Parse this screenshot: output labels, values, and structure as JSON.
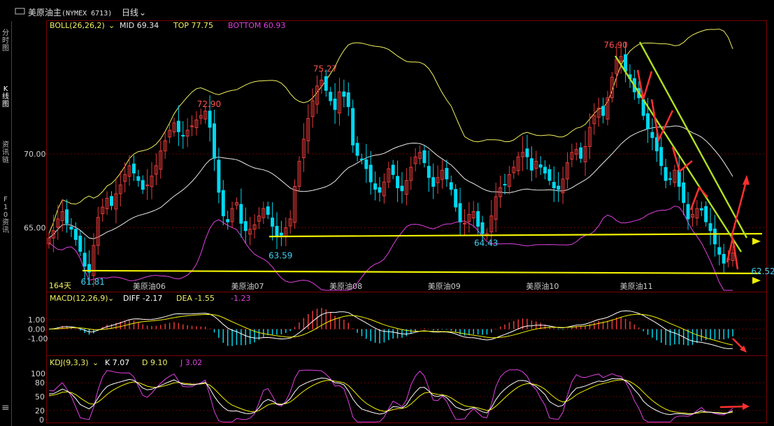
{
  "header": {
    "icon": "link-icon",
    "title": "美原油主",
    "code": "(NYMEX 6713)",
    "period": "日线",
    "period_caret": "⌄"
  },
  "side_tabs": [
    "分时图",
    "K线图",
    "资讯链",
    "F10资讯"
  ],
  "menu_icon": "≡",
  "colors": {
    "up": "#e83a3a",
    "down": "#00d8f0",
    "mid": "#e8e8e8",
    "top": "#f0f060",
    "bottom": "#e040e0",
    "channel": "#b0e020",
    "support": "#f0f000",
    "arrow": "#ff3030",
    "k": "#ffffff",
    "d": "#f0f000",
    "j": "#e040e0",
    "grid": "#6a0000",
    "axis": "#d0d0d0"
  },
  "boll": {
    "label": "BOLL(26,26,2)",
    "caret": "⌄",
    "mid": "MID 69.34",
    "top": "TOP 77.75",
    "bottom": "BOTTOM 60.93"
  },
  "macd": {
    "label": "MACD(12,26,9)",
    "caret": "⌄",
    "diff": "DIFF -2.17",
    "dea": "DEA -1.55",
    "macd": "-1.23"
  },
  "kdj": {
    "label": "KDJ(9,3,3)",
    "caret": "⌄",
    "k": "K 7.07",
    "d": "D 9.10",
    "j": "J 3.02"
  },
  "days_label": "164天",
  "chart_data": {
    "type": "candlestick",
    "symbol": "美原油主 (NYMEX 6713)",
    "period": "日线",
    "price_axis": {
      "ticks": [
        65.0,
        70.0
      ],
      "tick_labels": [
        "65.00",
        "70.00"
      ],
      "range": [
        61.0,
        79.0
      ]
    },
    "x_labels": [
      "美原油06",
      "美原油07",
      "美原油08",
      "美原油09",
      "美原油10",
      "美原油11"
    ],
    "price_annotations": [
      {
        "label": "61.81",
        "value": 61.81
      },
      {
        "label": "72.90",
        "value": 72.9
      },
      {
        "label": "63.59",
        "value": 63.59
      },
      {
        "label": "75.27",
        "value": 75.27
      },
      {
        "label": "64.43",
        "value": 64.43
      },
      {
        "label": "76.90",
        "value": 76.9
      },
      {
        "label": "62.52",
        "value": 62.52
      }
    ],
    "support_levels": [
      64.5,
      62.0
    ],
    "boll_last": {
      "mid": 69.34,
      "top": 77.75,
      "bottom": 60.93
    },
    "macd_axis": {
      "ticks": [
        1.0,
        0.0,
        -1.0
      ],
      "tick_labels": [
        "1.00",
        "0.00",
        "-1.00"
      ]
    },
    "macd_last": {
      "diff": -2.17,
      "dea": -1.55,
      "macd": -1.23
    },
    "kdj_axis": {
      "ticks": [
        100,
        80,
        50,
        20,
        0
      ],
      "tick_labels": [
        "100",
        "80",
        "50",
        "20",
        "0"
      ]
    },
    "kdj_last": {
      "k": 7.07,
      "d": 9.1,
      "j": 3.02
    },
    "closes": [
      64.3,
      64.8,
      65.6,
      66.1,
      65.3,
      64.9,
      64.2,
      63.4,
      62.4,
      62.0,
      63.8,
      65.7,
      66.4,
      67.0,
      66.5,
      67.3,
      67.9,
      68.6,
      69.2,
      68.7,
      68.2,
      67.6,
      67.9,
      68.5,
      69.2,
      70.2,
      70.9,
      71.6,
      72.1,
      71.5,
      71.2,
      71.6,
      71.9,
      72.3,
      72.6,
      72.9,
      71.8,
      69.7,
      67.4,
      65.8,
      65.4,
      66.3,
      66.7,
      65.3,
      64.8,
      64.9,
      65.2,
      65.8,
      66.3,
      65.9,
      65.1,
      64.4,
      64.5,
      65.0,
      65.6,
      67.8,
      69.5,
      71.0,
      72.4,
      73.6,
      74.6,
      75.0,
      74.3,
      73.6,
      73.0,
      74.2,
      73.9,
      73.2,
      70.6,
      69.9,
      69.6,
      69.0,
      68.1,
      67.6,
      67.4,
      68.1,
      69.0,
      68.6,
      67.7,
      67.5,
      68.2,
      69.1,
      69.8,
      70.1,
      69.4,
      68.4,
      67.8,
      68.4,
      68.9,
      68.3,
      67.6,
      66.4,
      65.4,
      65.3,
      65.9,
      66.1,
      65.1,
      64.6,
      64.6,
      65.8,
      67.1,
      67.7,
      67.9,
      68.6,
      69.1,
      69.8,
      70.1,
      69.8,
      68.9,
      69.5,
      69.1,
      68.7,
      68.2,
      67.7,
      67.6,
      68.3,
      69.4,
      70.1,
      70.3,
      69.7,
      70.5,
      71.8,
      72.6,
      73.1,
      72.6,
      73.8,
      75.2,
      76.4,
      76.6,
      75.6,
      75.1,
      74.2,
      73.8,
      72.6,
      71.7,
      71.1,
      70.2,
      69.2,
      68.2,
      68.3,
      68.9,
      67.8,
      66.7,
      65.6,
      65.9,
      66.3,
      66.2,
      65.4,
      64.8,
      63.9,
      63.2,
      62.6,
      62.9,
      63.3
    ]
  }
}
